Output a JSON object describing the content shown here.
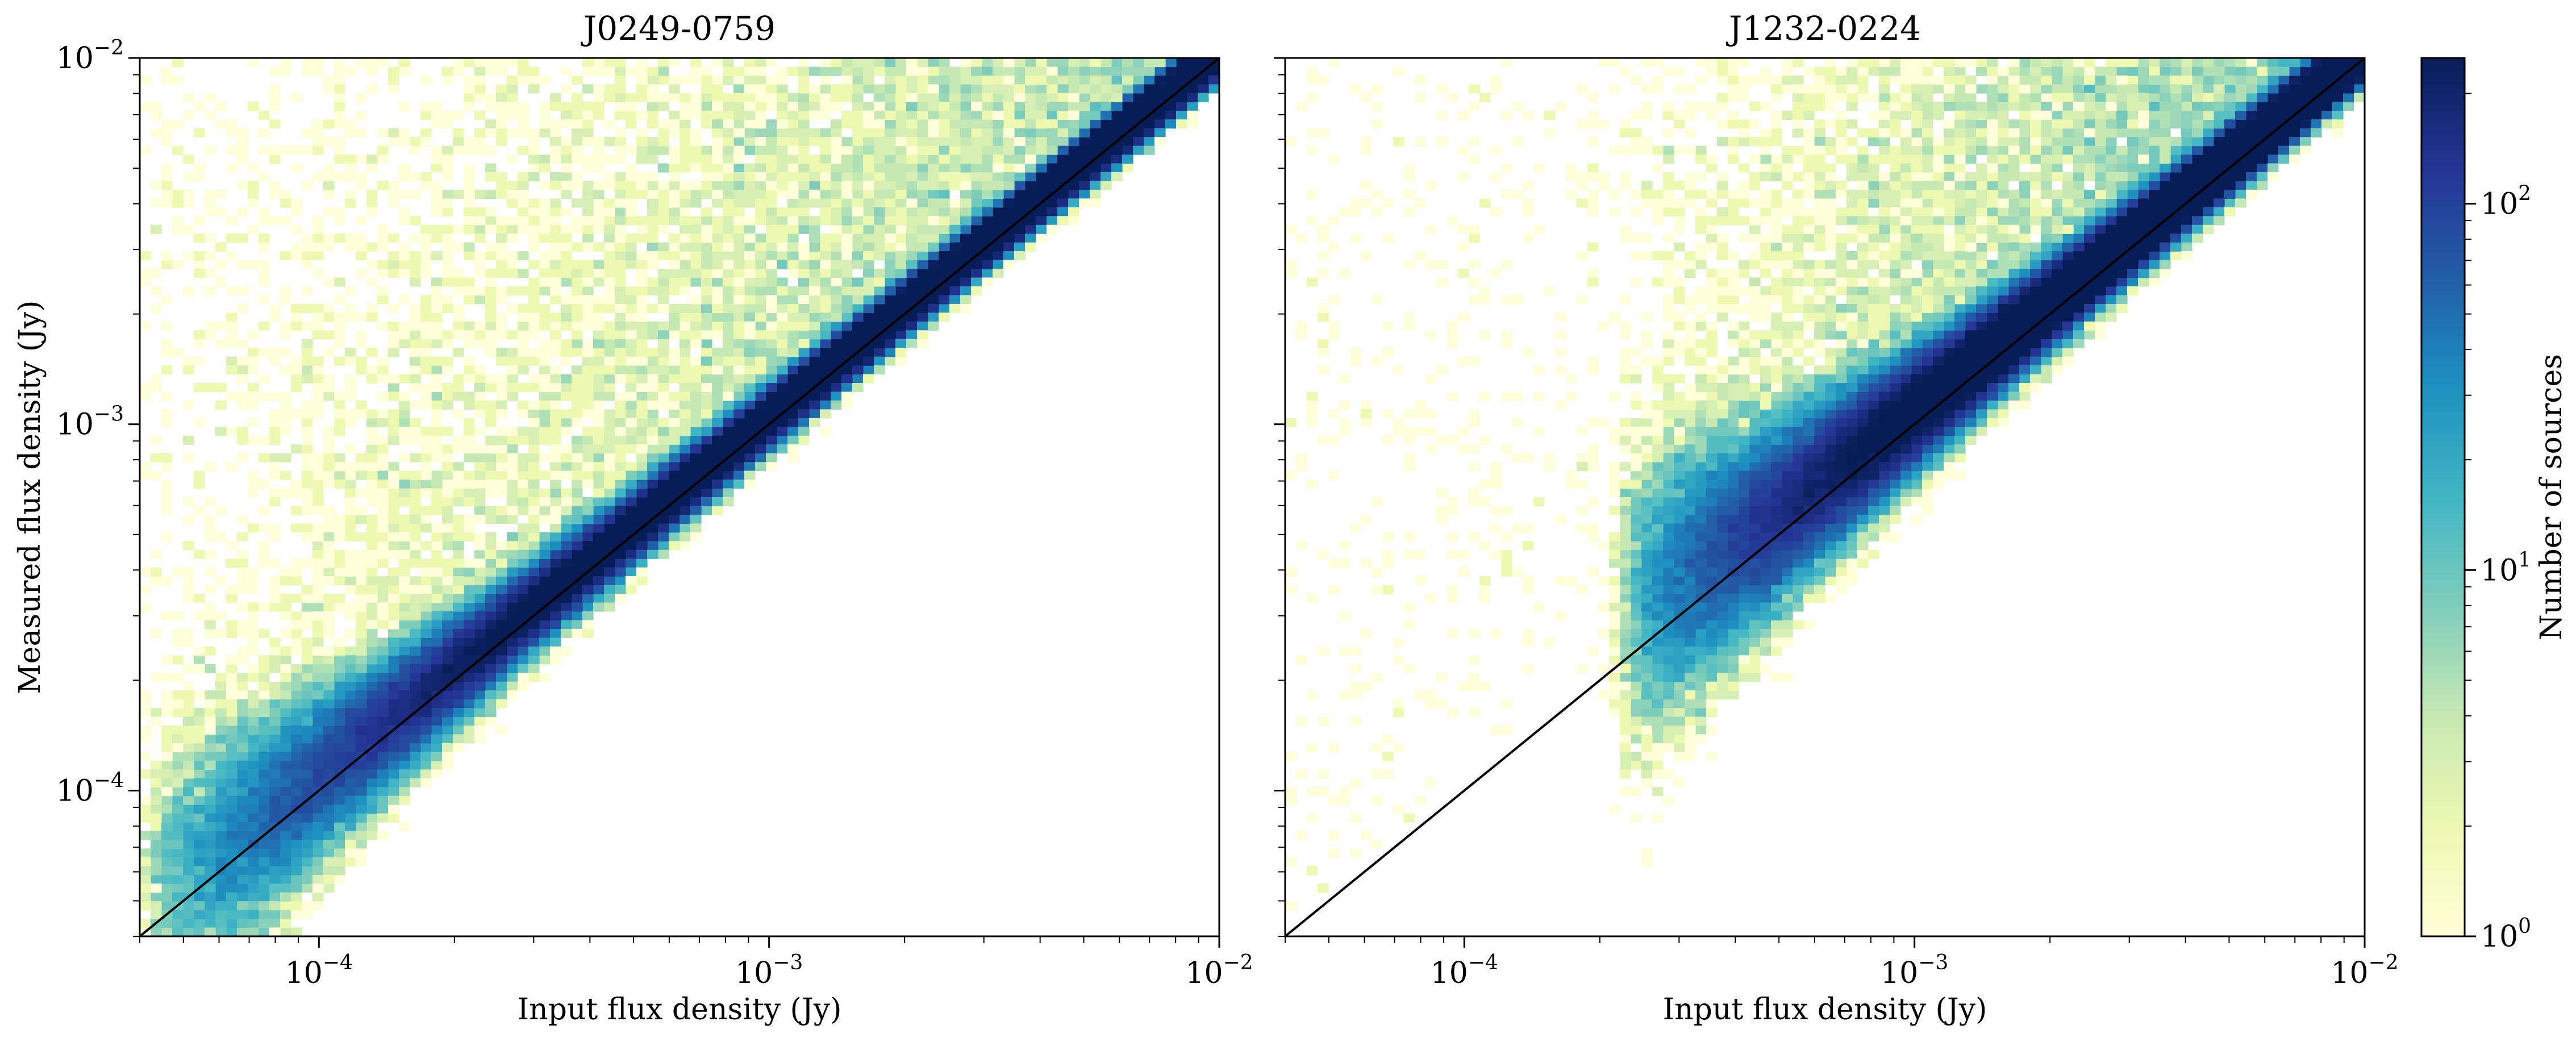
{
  "chart_data": [
    {
      "type": "heatmap",
      "title": "J0249-0759",
      "xlabel": "Input flux density (Jy)",
      "ylabel": "Measured flux density (Jy)",
      "xscale": "log",
      "yscale": "log",
      "xlim": [
        4e-05,
        0.01
      ],
      "ylim": [
        4e-05,
        0.01
      ],
      "x_ticks": [
        {
          "value": 0.0001,
          "mantissa": "10",
          "exponent": "−4"
        },
        {
          "value": 0.001,
          "mantissa": "10",
          "exponent": "−3"
        },
        {
          "value": 0.01,
          "mantissa": "10",
          "exponent": "−2"
        }
      ],
      "y_ticks": [
        {
          "value": 0.0001,
          "mantissa": "10",
          "exponent": "−4"
        },
        {
          "value": 0.001,
          "mantissa": "10",
          "exponent": "−3"
        },
        {
          "value": 0.01,
          "mantissa": "10",
          "exponent": "−2"
        }
      ],
      "reference_line": {
        "type": "one-to-one",
        "points": [
          [
            4e-05,
            4e-05
          ],
          [
            0.01,
            0.01
          ]
        ],
        "color": "#000000"
      },
      "distribution": {
        "shape": "2D histogram tightly following the one-to-one line, scatter widening toward faint fluxes, extending down to input ~4e-5 Jy",
        "input_min": 4e-05,
        "peak_counts": 250
      }
    },
    {
      "type": "heatmap",
      "title": "J1232-0224",
      "xlabel": "Input flux density (Jy)",
      "ylabel": "",
      "xscale": "log",
      "yscale": "log",
      "xlim": [
        4e-05,
        0.01
      ],
      "ylim": [
        4e-05,
        0.01
      ],
      "x_ticks": [
        {
          "value": 0.0001,
          "mantissa": "10",
          "exponent": "−4"
        },
        {
          "value": 0.001,
          "mantissa": "10",
          "exponent": "−3"
        },
        {
          "value": 0.01,
          "mantissa": "10",
          "exponent": "−2"
        }
      ],
      "y_tick_labels_shown": false,
      "reference_line": {
        "type": "one-to-one",
        "points": [
          [
            4e-05,
            4e-05
          ],
          [
            0.01,
            0.01
          ]
        ],
        "color": "#000000"
      },
      "distribution": {
        "shape": "2D histogram along the one-to-one line, faint-end cutoff near input ~2.2e-4 Jy with measured values biased high at the faint end",
        "input_min": 0.00022,
        "peak_counts": 250
      }
    }
  ],
  "colorbar": {
    "label": "Number of sources",
    "scale": "log",
    "range": [
      1,
      250
    ],
    "colormap": "YlGnBu",
    "ticks": [
      {
        "value": 1,
        "mantissa": "10",
        "exponent": "0"
      },
      {
        "value": 10,
        "mantissa": "10",
        "exponent": "1"
      },
      {
        "value": 100,
        "mantissa": "10",
        "exponent": "2"
      }
    ],
    "color_stops": [
      "#ffffd9",
      "#edf8b1",
      "#c7e9b4",
      "#7fcdbb",
      "#41b6c4",
      "#1d91c0",
      "#225ea8",
      "#253494",
      "#081d58"
    ]
  }
}
